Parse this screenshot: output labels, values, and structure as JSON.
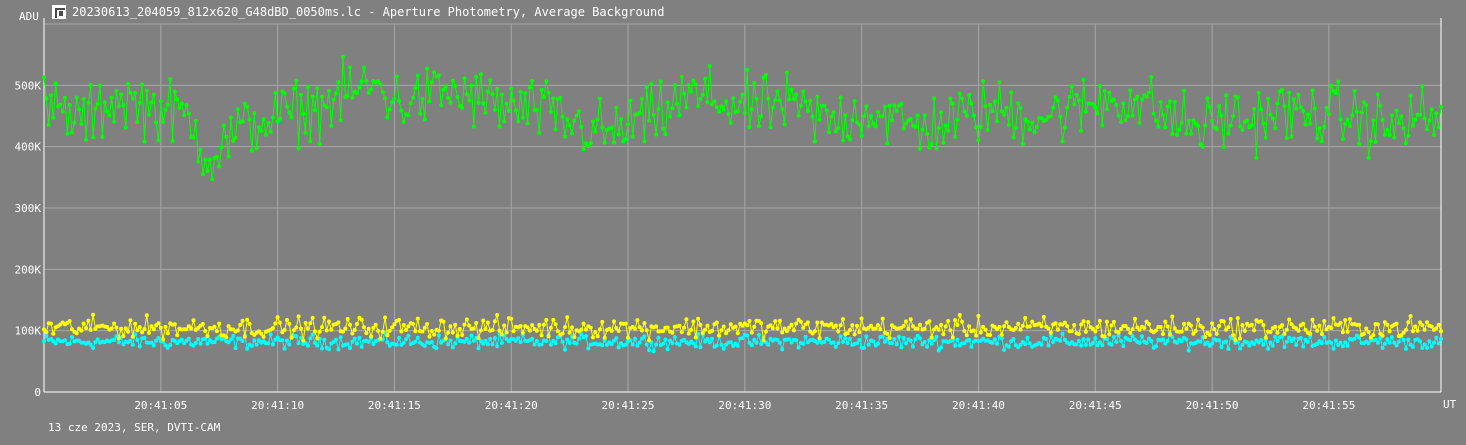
{
  "window": {
    "title": "20230613_204059_812x620_G48dBD_0050ms.lc - Aperture Photometry, Average Background",
    "footer": "13 cze 2023, SER, DVTI-CAM"
  },
  "colors": {
    "background": "#808080",
    "grid": "#a6a6a6",
    "axis": "#ffffff",
    "target_series": "#00ff00",
    "comparison_series": "#ffff00",
    "background_series": "#00ffff"
  },
  "chart_data": {
    "type": "line",
    "title": "Aperture Photometry, Average Background",
    "ylabel": "ADU",
    "xlabel": "UT",
    "ylim": [
      0,
      600000
    ],
    "y_ticks": [
      {
        "value": 0,
        "label": "0"
      },
      {
        "value": 100000,
        "label": "100K"
      },
      {
        "value": 200000,
        "label": "200K"
      },
      {
        "value": 300000,
        "label": "300K"
      },
      {
        "value": 400000,
        "label": "400K"
      },
      {
        "value": 500000,
        "label": "500K"
      }
    ],
    "x_ticks_seconds": [
      5,
      10,
      15,
      20,
      25,
      30,
      35,
      40,
      45,
      50,
      55
    ],
    "x_tick_labels": [
      "20:41:05",
      "20:41:10",
      "20:41:15",
      "20:41:20",
      "20:41:25",
      "20:41:30",
      "20:41:35",
      "20:41:40",
      "20:41:45",
      "20:41:50",
      "20:41:55"
    ],
    "xlim_seconds": [
      0,
      59.8
    ],
    "grid": true,
    "series": [
      {
        "color": "#00ff00",
        "x_start_seconds": 0,
        "x_step_seconds": 0.1,
        "profile": [
          465000,
          450000,
          445000,
          480000,
          470000,
          460000,
          450000,
          380000,
          420000,
          440000,
          450000,
          460000,
          470000,
          490000,
          500000,
          470000,
          480000,
          490000,
          480000,
          470000,
          460000,
          460000,
          440000,
          430000,
          420000,
          440000,
          450000,
          480000,
          480000,
          470000,
          460000,
          470000,
          460000,
          440000,
          450000,
          460000,
          440000,
          430000,
          440000,
          450000,
          460000,
          455000,
          450000,
          455000,
          465000,
          480000,
          475000,
          460000,
          440000,
          430000,
          450000,
          440000,
          460000,
          450000,
          455000,
          450000,
          440000,
          430000,
          450000,
          440000
        ],
        "amplitude": 45000
      },
      {
        "color": "#ffff00",
        "x_start_seconds": 0,
        "x_step_seconds": 0.1,
        "profile": [
          105000
        ],
        "amplitude": 15000
      },
      {
        "color": "#00ffff",
        "x_start_seconds": 0,
        "x_step_seconds": 0.1,
        "profile": [
          82000
        ],
        "amplitude": 10000
      }
    ]
  }
}
